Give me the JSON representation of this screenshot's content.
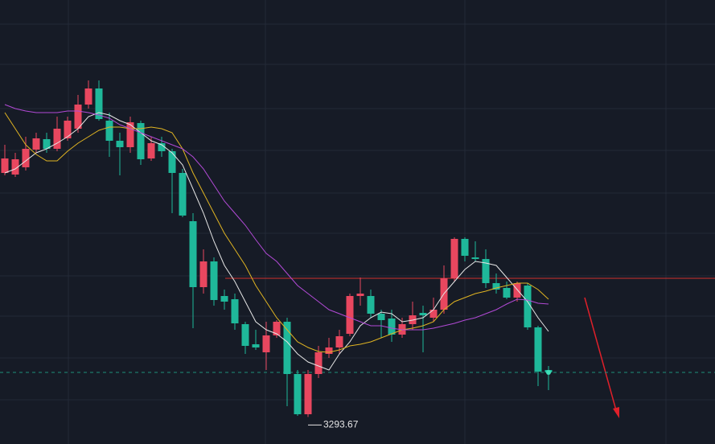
{
  "chart_data": {
    "type": "candlestick",
    "ylim": [
      3260,
      3812
    ],
    "up_color": "#e8475f",
    "down_color": "#1fb89a",
    "open": [
      3597,
      3595,
      3604,
      3626,
      3639,
      3627,
      3640,
      3652,
      3682,
      3702,
      3662,
      3637,
      3629,
      3659,
      3615,
      3634,
      3624,
      3597,
      3537,
      3455,
      3487,
      3444,
      3440,
      3409,
      3384,
      3374,
      3395,
      3412,
      3347,
      3297,
      3347,
      3372,
      3380,
      3397,
      3444,
      3444,
      3422,
      3416,
      3396,
      3409,
      3423,
      3417,
      3427,
      3466,
      3515,
      3492,
      3490,
      3460,
      3454,
      3442,
      3457,
      3405,
      3352
    ],
    "high": [
      3632,
      3622,
      3642,
      3647,
      3647,
      3667,
      3667,
      3694,
      3712,
      3712,
      3672,
      3647,
      3667,
      3662,
      3642,
      3642,
      3627,
      3602,
      3547,
      3502,
      3492,
      3452,
      3447,
      3412,
      3402,
      3412,
      3414,
      3417,
      3352,
      3352,
      3382,
      3392,
      3402,
      3447,
      3467,
      3452,
      3427,
      3427,
      3417,
      3437,
      3432,
      3442,
      3482,
      3517,
      3517,
      3512,
      3502,
      3472,
      3462,
      3462,
      3460,
      3407,
      3357
    ],
    "low": [
      3594,
      3592,
      3600,
      3622,
      3622,
      3624,
      3637,
      3647,
      3677,
      3662,
      3617,
      3594,
      3622,
      3607,
      3612,
      3617,
      3547,
      3542,
      3404,
      3447,
      3432,
      3427,
      3402,
      3372,
      3377,
      3352,
      3392,
      3307,
      3295,
      3293.67,
      3342,
      3367,
      3372,
      3394,
      3432,
      3417,
      3392,
      3387,
      3392,
      3402,
      3374,
      3412,
      3422,
      3462,
      3487,
      3487,
      3454,
      3447,
      3440,
      3437,
      3402,
      3332,
      3327
    ],
    "close": [
      3615,
      3614,
      3627,
      3640,
      3627,
      3652,
      3662,
      3682,
      3702,
      3664,
      3637,
      3629,
      3660,
      3614,
      3634,
      3624,
      3597,
      3544,
      3455,
      3487,
      3439,
      3437,
      3410,
      3382,
      3380,
      3395,
      3412,
      3347,
      3297,
      3347,
      3374,
      3380,
      3394,
      3444,
      3447,
      3422,
      3414,
      3396,
      3409,
      3420,
      3420,
      3427,
      3466,
      3515,
      3494,
      3490,
      3460,
      3452,
      3442,
      3460,
      3405,
      3350,
      3349
    ],
    "series": [
      {
        "color": "#e6e6e6",
        "values": [
          3597,
          3602,
          3612,
          3622,
          3627,
          3634,
          3642,
          3652,
          3667,
          3672,
          3669,
          3662,
          3657,
          3647,
          3637,
          3632,
          3622,
          3607,
          3577,
          3547,
          3512,
          3482,
          3462,
          3437,
          3412,
          3402,
          3397,
          3387,
          3372,
          3362,
          3357,
          3352,
          3372,
          3387,
          3407,
          3417,
          3424,
          3422,
          3412,
          3414,
          3417,
          3427,
          3447,
          3462,
          3477,
          3487,
          3485,
          3482,
          3467,
          3452,
          3437,
          3417,
          3400
        ]
      },
      {
        "color": "#e0b422",
        "values": [
          3672,
          3652,
          3632,
          3620,
          3612,
          3612,
          3624,
          3634,
          3642,
          3650,
          3654,
          3654,
          3652,
          3652,
          3654,
          3652,
          3647,
          3627,
          3597,
          3572,
          3547,
          3522,
          3502,
          3482,
          3457,
          3437,
          3417,
          3402,
          3387,
          3380,
          3375,
          3374,
          3377,
          3382,
          3384,
          3387,
          3392,
          3397,
          3402,
          3404,
          3407,
          3412,
          3427,
          3437,
          3442,
          3447,
          3450,
          3454,
          3457,
          3460,
          3460,
          3452,
          3440
        ]
      },
      {
        "color": "#b24ad6",
        "values": [
          3682,
          3677,
          3674,
          3672,
          3672,
          3672,
          3674,
          3674,
          3672,
          3669,
          3665,
          3657,
          3652,
          3647,
          3642,
          3637,
          3632,
          3627,
          3617,
          3602,
          3582,
          3562,
          3547,
          3532,
          3514,
          3497,
          3487,
          3472,
          3457,
          3447,
          3437,
          3427,
          3422,
          3417,
          3412,
          3407,
          3407,
          3404,
          3402,
          3402,
          3402,
          3404,
          3407,
          3410,
          3414,
          3417,
          3422,
          3427,
          3434,
          3440,
          3439,
          3435,
          3434
        ]
      }
    ],
    "hlines": [
      {
        "value": 3466,
        "color": "#d0302f"
      },
      {
        "value": 3349,
        "color": "#1f8f7a"
      }
    ]
  }
}
